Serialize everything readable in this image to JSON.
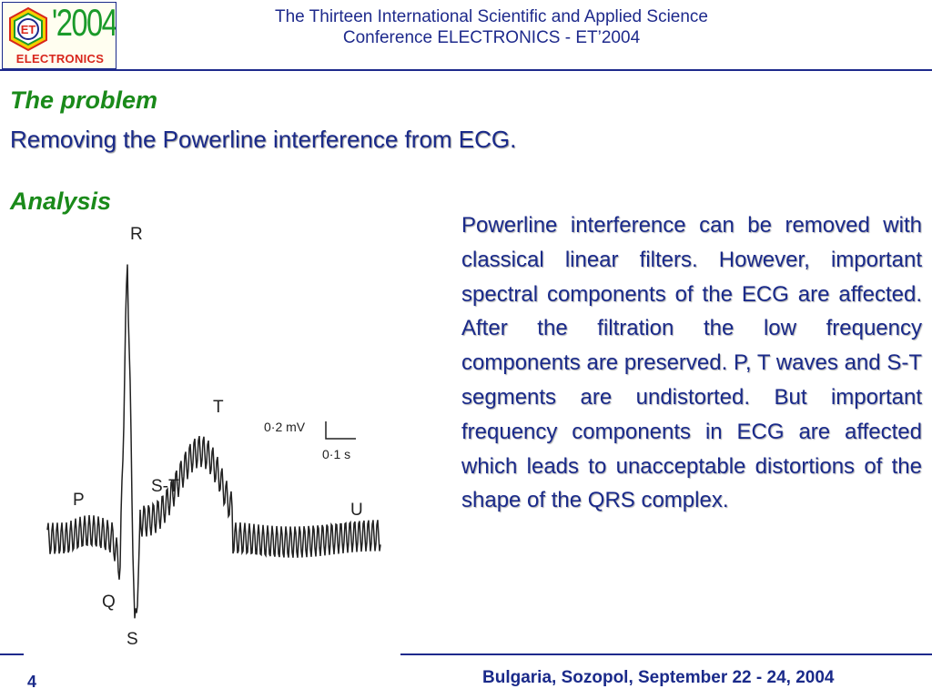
{
  "header": {
    "logo": {
      "year": "2004",
      "apostrophe": "'",
      "badge": "ET",
      "label": "ELECTRONICS"
    },
    "title_line1": "The Thirteen International Scientific and Applied Science",
    "title_line2": "Conference ELECTRONICS - ET’2004"
  },
  "slide": {
    "problem_heading": "The problem",
    "problem_text": "Removing the Powerline interference from ECG.",
    "analysis_heading": "Analysis",
    "body": "Powerline interference can be removed with classical linear filters. However, important spectral components of the ECG are affected.  After the filtration the low frequency components are preserved. P, T waves and S-T segments are undistorted. But important frequency components in ECG are affected which leads to unacceptable distortions of the shape of the QRS complex."
  },
  "figure": {
    "labels": {
      "R": "R",
      "T": "T",
      "ST": "S-T",
      "P": "P",
      "U": "U",
      "Q": "Q",
      "S": "S"
    },
    "scale_amplitude": "0·2 mV",
    "scale_time": "0·1 s"
  },
  "footer": {
    "page": "4",
    "location": "Bulgaria, Sozopol, September 22 - 24, 2004"
  }
}
